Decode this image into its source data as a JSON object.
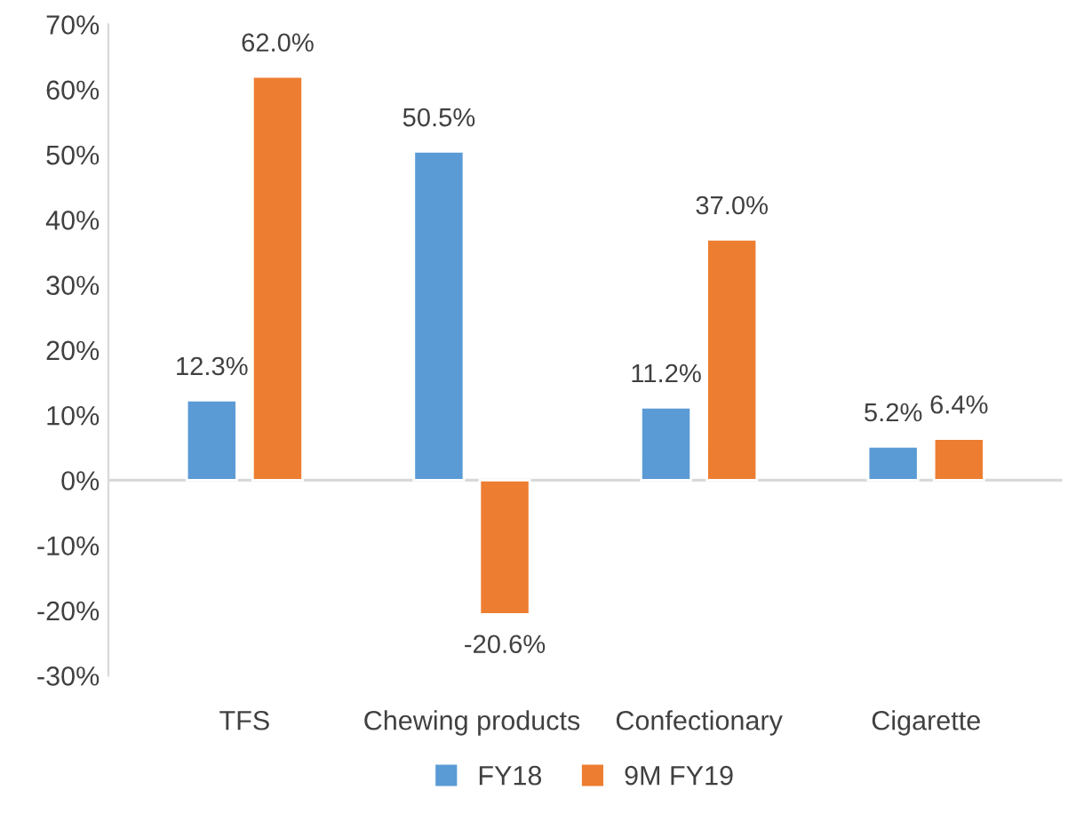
{
  "chart_data": {
    "type": "bar",
    "categories": [
      "TFS",
      "Chewing products",
      "Confectionary",
      "Cigarette"
    ],
    "series": [
      {
        "name": "FY18",
        "color": "#5b9bd5",
        "values": [
          12.3,
          50.5,
          11.2,
          5.2
        ],
        "value_labels": [
          "12.3%",
          "50.5%",
          "11.2%",
          "5.2%"
        ]
      },
      {
        "name": "9M FY19",
        "color": "#ed7d31",
        "values": [
          62.0,
          -20.6,
          37.0,
          6.4
        ],
        "value_labels": [
          "62.0%",
          "-20.6%",
          "37.0%",
          "6.4%"
        ]
      }
    ],
    "ylim": [
      -30,
      70
    ],
    "yticks": [
      {
        "value": -30,
        "label": "-30%"
      },
      {
        "value": -20,
        "label": "-20%"
      },
      {
        "value": -10,
        "label": "-10%"
      },
      {
        "value": 0,
        "label": "0%"
      },
      {
        "value": 10,
        "label": "10%"
      },
      {
        "value": 20,
        "label": "20%"
      },
      {
        "value": 30,
        "label": "30%"
      },
      {
        "value": 40,
        "label": "40%"
      },
      {
        "value": 50,
        "label": "50%"
      },
      {
        "value": 60,
        "label": "60%"
      },
      {
        "value": 70,
        "label": "70%"
      }
    ],
    "ref_lines": [
      {
        "axis": "y",
        "value": 0,
        "color": "#d9d9d9"
      }
    ],
    "legend": "bottom"
  }
}
